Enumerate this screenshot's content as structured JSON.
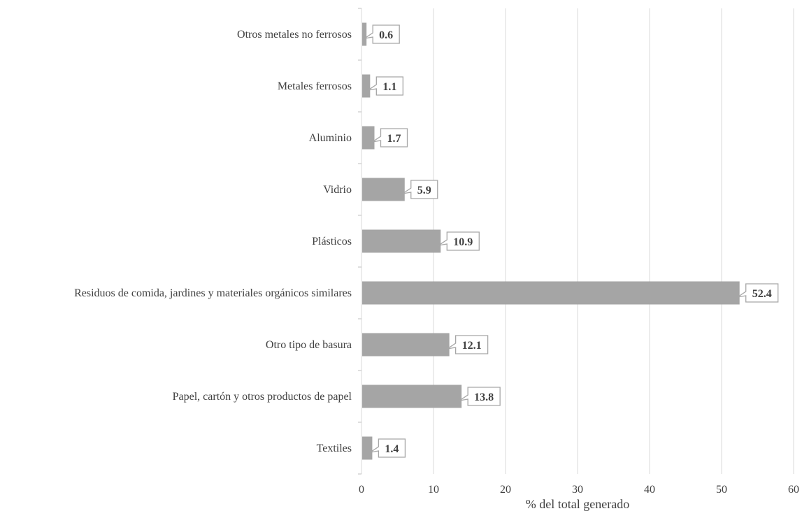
{
  "chart_data": {
    "type": "bar",
    "orientation": "horizontal",
    "title": "",
    "xlabel": "% del total generado",
    "ylabel": "",
    "xlim": [
      0,
      60
    ],
    "x_ticks": [
      0,
      10,
      20,
      30,
      40,
      50,
      60
    ],
    "grid": "vertical major gridlines",
    "legend": "none",
    "categories": [
      "Otros metales no ferrosos",
      "Metales ferrosos",
      "Aluminio",
      "Vidrio",
      "Plásticos",
      "Residuos de comida, jardines y materiales orgánicos similares",
      "Otro tipo de basura",
      "Papel, cartón y otros productos de papel",
      "Textiles"
    ],
    "values": [
      0.6,
      1.1,
      1.7,
      5.9,
      10.9,
      52.4,
      12.1,
      13.8,
      1.4
    ],
    "data_labels": [
      "0.6",
      "1.1",
      "1.7",
      "5.9",
      "10.9",
      "52.4",
      "12.1",
      "13.8",
      "1.4"
    ],
    "colors": {
      "bar": "#a5a5a5",
      "text": "#404040",
      "grid": "#d9d9d9",
      "callout_border": "#a6a6a6"
    }
  }
}
